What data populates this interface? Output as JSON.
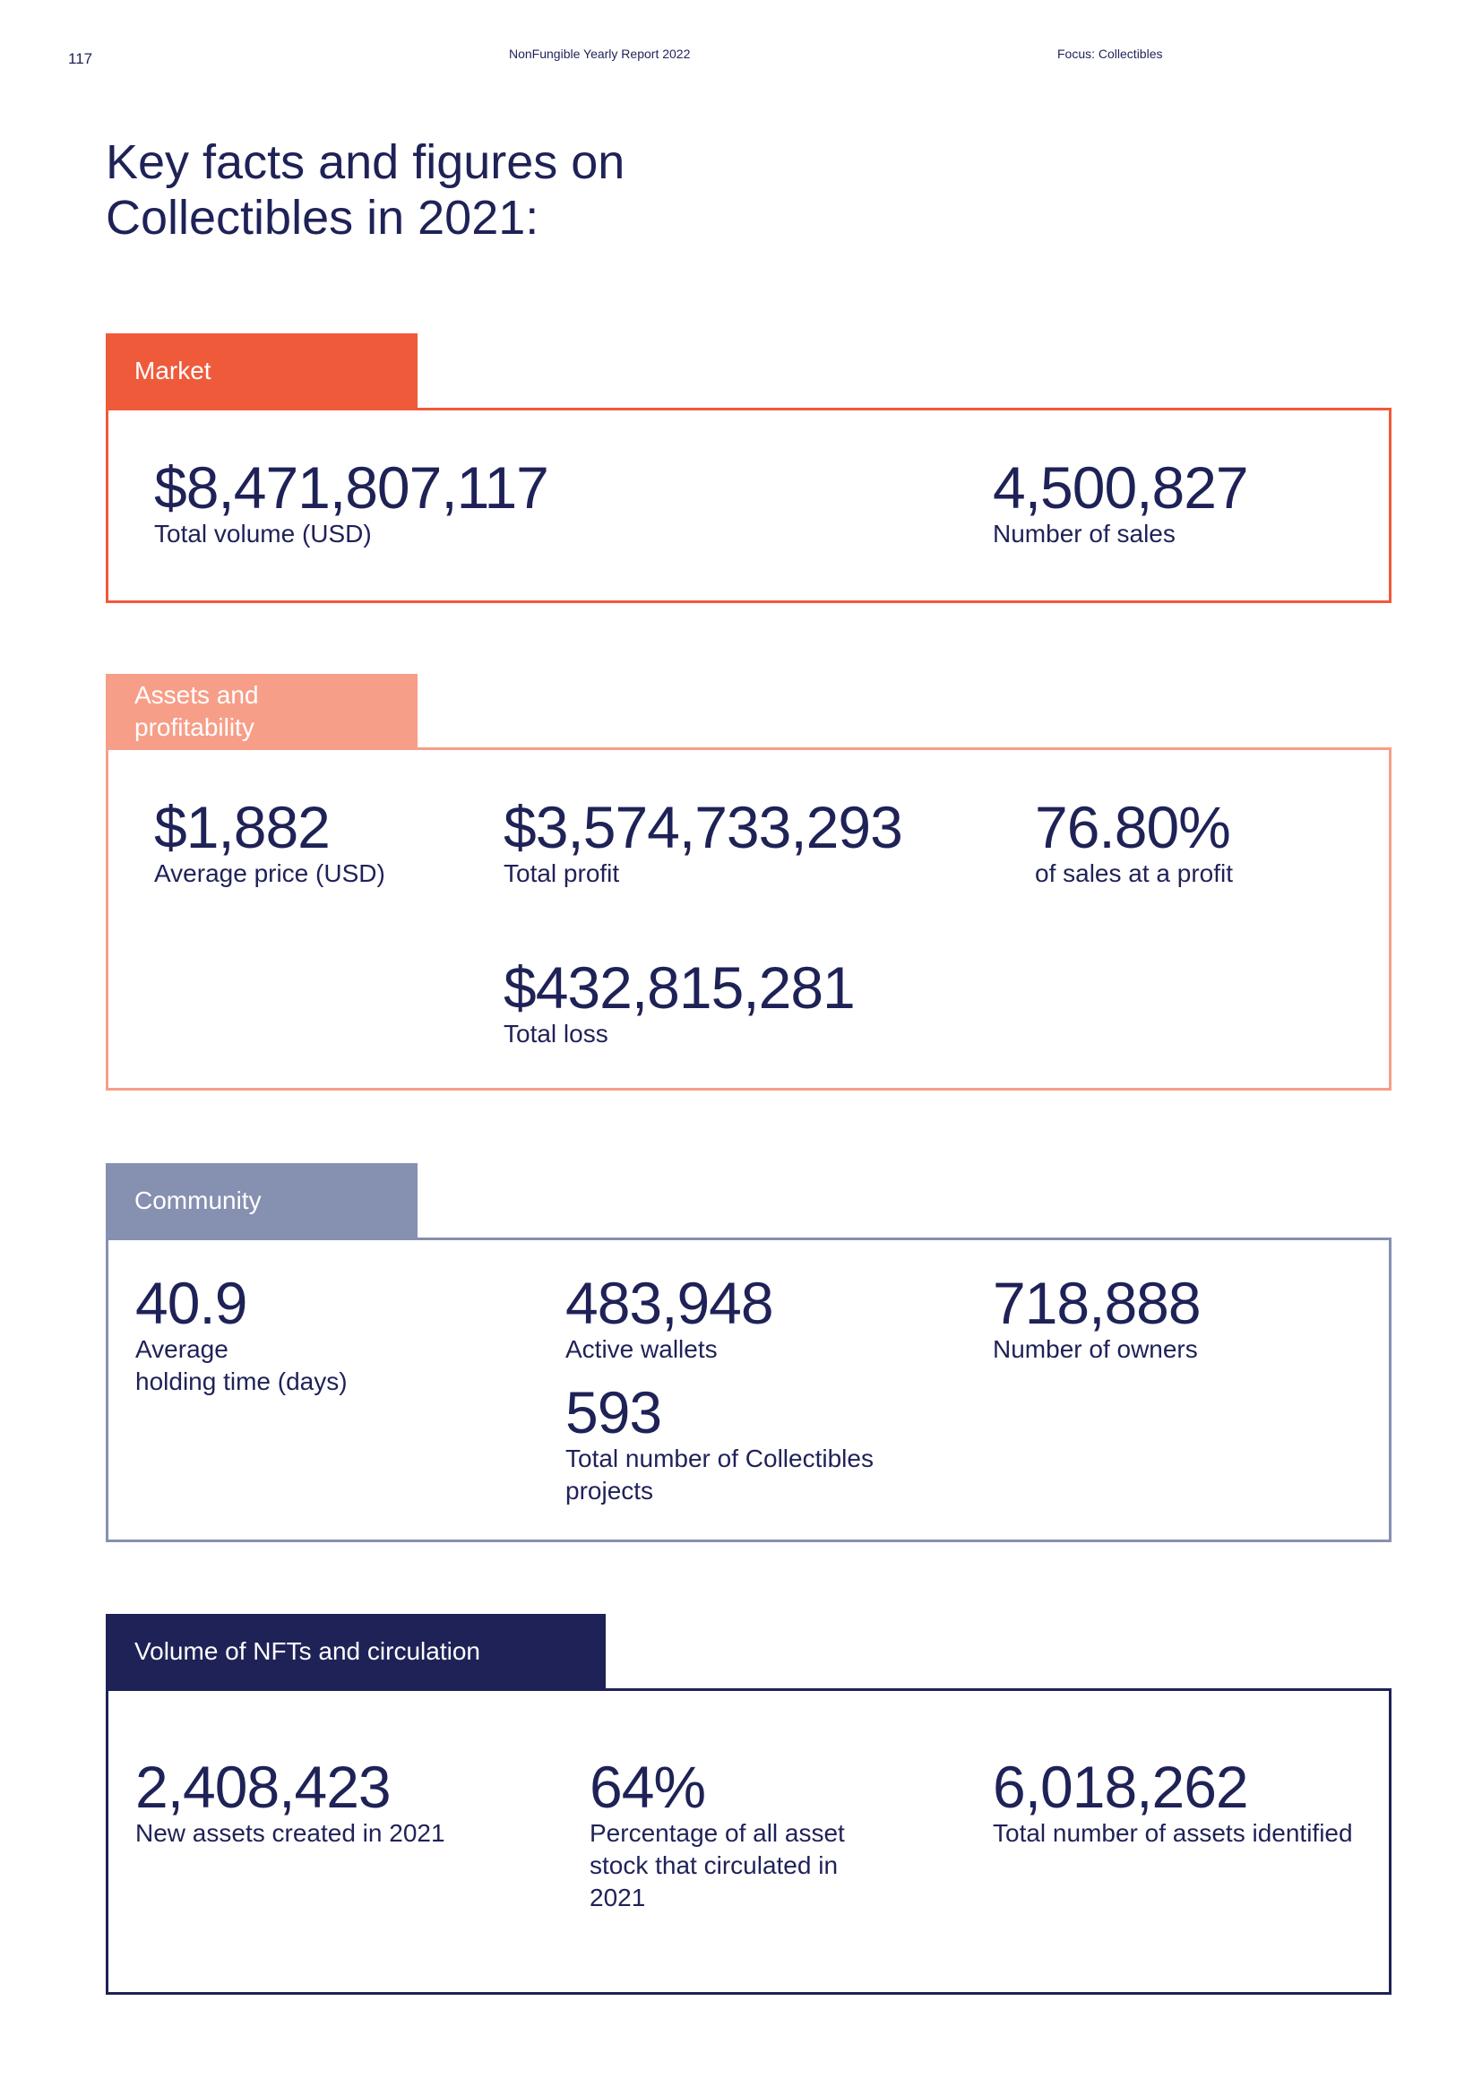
{
  "header": {
    "page_number": "117",
    "report_title": "NonFungible Yearly Report 2022",
    "section": "Focus: Collectibles"
  },
  "title_line1": "Key facts and figures on",
  "title_line2": "Collectibles in 2021:",
  "sections": {
    "market": {
      "label": "Market",
      "color": "#ef5a3b",
      "stats": [
        {
          "value": "$8,471,807,117",
          "label": "Total volume (USD)"
        },
        {
          "value": "4,500,827",
          "label": "Number of sales"
        }
      ]
    },
    "assets": {
      "label_line1": "Assets and",
      "label_line2": "profitability",
      "color": "#f79e88",
      "stats": [
        {
          "value": "$1,882",
          "label": "Average price (USD)"
        },
        {
          "value": "$3,574,733,293",
          "label": "Total profit"
        },
        {
          "value": "76.80%",
          "label": "of sales at a profit"
        },
        {
          "value": "$432,815,281",
          "label": "Total loss"
        }
      ]
    },
    "community": {
      "label": "Community",
      "color": "#8690b1",
      "stats": [
        {
          "value": "40.9",
          "label_line1": "Average",
          "label_line2": "holding time (days)"
        },
        {
          "value": "483,948",
          "label": "Active wallets"
        },
        {
          "value": "718,888",
          "label": "Number of owners"
        },
        {
          "value": "593",
          "label_line1": "Total number of Collectibles",
          "label_line2": "projects"
        }
      ]
    },
    "volume": {
      "label": "Volume of NFTs and circulation",
      "color": "#1f2257",
      "stats": [
        {
          "value": "2,408,423",
          "label": "New assets created in 2021"
        },
        {
          "value": "64%",
          "label_line1": "Percentage of all asset",
          "label_line2": "stock that circulated in",
          "label_line3": "2021"
        },
        {
          "value": "6,018,262",
          "label": "Total number of assets identified"
        }
      ]
    }
  }
}
